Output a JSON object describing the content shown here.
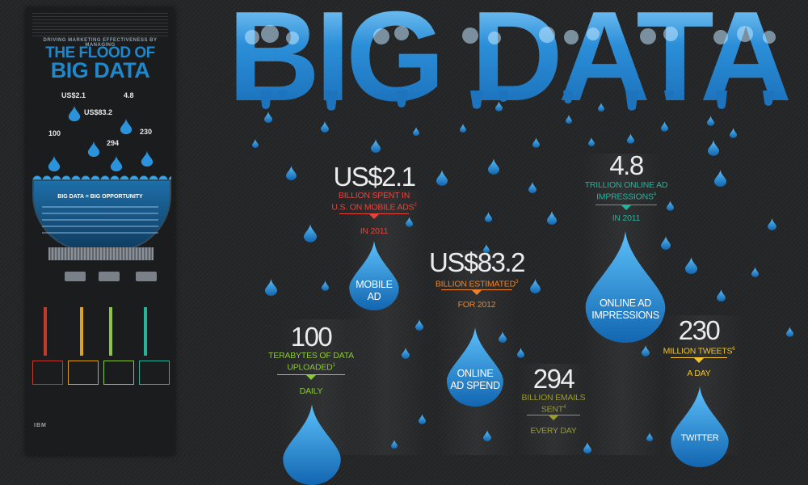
{
  "poster": {
    "tagline": "DRIVING MARKETING EFFECTIVENESS BY MANAGING",
    "title_line1": "THE FLOOD OF",
    "title_line2": "BIG DATA",
    "values": [
      "US$2.1",
      "4.8",
      "US$83.2",
      "100",
      "294",
      "230"
    ],
    "tank_title": "BIG DATA = BIG OPPORTUNITY",
    "logo": "IBM"
  },
  "title": "BIG DATA",
  "stats": {
    "mobile": {
      "value": "US$2.1",
      "desc_line1": "BILLION SPENT IN",
      "desc_line2": "U.S. ON MOBILE ADS",
      "footnote": "2",
      "period": "IN 2011",
      "drop_line1": "MOBILE",
      "drop_line2": "AD",
      "color": "#e8433b"
    },
    "adspend": {
      "value": "US$83.2",
      "desc_line1": "BILLION ESTIMATED",
      "footnote": "3",
      "period": "FOR 2012",
      "drop_line1": "ONLINE",
      "drop_line2": "AD SPEND",
      "color": "#f0832a"
    },
    "impressions": {
      "value": "4.8",
      "desc_line1": "TRILLION ONLINE AD",
      "desc_line2": "IMPRESSIONS",
      "footnote": "4",
      "period": "IN 2011",
      "drop_line1": "ONLINE AD",
      "drop_line2": "IMPRESSIONS",
      "color": "#27b39a"
    },
    "data": {
      "value": "100",
      "desc_line1": "TERABYTES OF DATA",
      "desc_line2": "UPLOADED",
      "footnote": "1",
      "period": "DAILY",
      "color": "#8cc63e"
    },
    "emails": {
      "value": "294",
      "desc_line1": "BILLION EMAILS",
      "desc_line2": "SENT",
      "footnote": "4",
      "period": "EVERY DAY",
      "color": "#9a9a2e"
    },
    "tweets": {
      "value": "230",
      "desc_line1": "MILLION TWEETS",
      "footnote": "6",
      "period": "A DAY",
      "drop_line1": "TWITTER",
      "color": "#f2c530"
    }
  },
  "colors": {
    "drop_light": "#4fb8f5",
    "drop_dark": "#0c4f8c",
    "title_blue": "#2e8fd6"
  }
}
